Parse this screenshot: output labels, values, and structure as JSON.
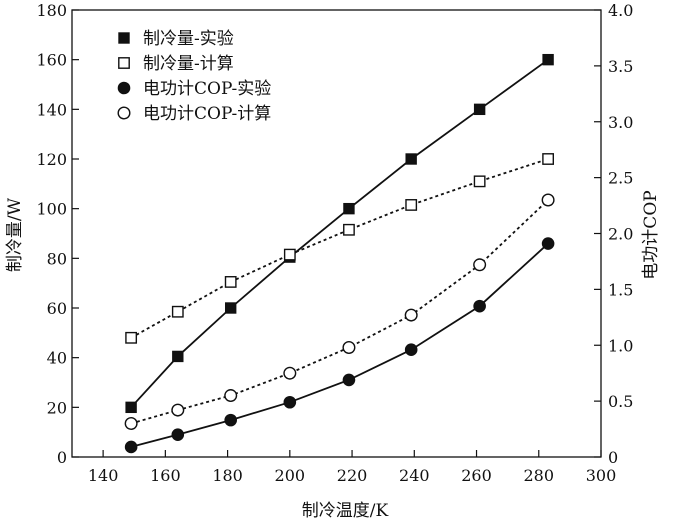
{
  "chart_data": {
    "type": "line",
    "xlabel": "制冷温度/K",
    "ylabel_left": "制冷量/W",
    "ylabel_right": "电功计COP",
    "x_range": [
      130,
      300
    ],
    "y_left_range": [
      0,
      180
    ],
    "y_right_range": [
      0,
      4.0
    ],
    "x_ticks": [
      140,
      160,
      180,
      200,
      220,
      240,
      260,
      280,
      300
    ],
    "y_left_ticks": [
      0,
      20,
      40,
      60,
      80,
      100,
      120,
      140,
      160,
      180
    ],
    "y_right_ticks": [
      "0",
      "0.5",
      "1.0",
      "1.5",
      "2.0",
      "2.5",
      "3.0",
      "3.5",
      "4.0"
    ],
    "grid": false,
    "legend_position": "top-left",
    "series": [
      {
        "name": "制冷量-实验",
        "axis": "left",
        "marker": "filled-square",
        "line": "solid",
        "x": [
          149,
          164,
          181,
          200,
          219,
          239,
          261,
          283
        ],
        "y": [
          20,
          40.5,
          60,
          80.5,
          100,
          120,
          140,
          160
        ]
      },
      {
        "name": "制冷量-计算",
        "axis": "left",
        "marker": "open-square",
        "line": "dotted",
        "x": [
          149,
          164,
          181,
          200,
          219,
          239,
          261,
          283
        ],
        "y": [
          48,
          58.5,
          70.5,
          81.5,
          91.5,
          101.5,
          111,
          120
        ]
      },
      {
        "name": "电功计COP-实验",
        "axis": "right",
        "marker": "filled-circle",
        "line": "solid",
        "x": [
          149,
          164,
          181,
          200,
          219,
          239,
          261,
          283
        ],
        "y": [
          0.09,
          0.2,
          0.33,
          0.49,
          0.69,
          0.96,
          1.35,
          1.91
        ]
      },
      {
        "name": "电功计COP-计算",
        "axis": "right",
        "marker": "open-circle",
        "line": "dotted",
        "x": [
          149,
          164,
          181,
          200,
          219,
          239,
          261,
          283
        ],
        "y": [
          0.3,
          0.42,
          0.55,
          0.75,
          0.98,
          1.27,
          1.72,
          2.3
        ]
      }
    ]
  }
}
